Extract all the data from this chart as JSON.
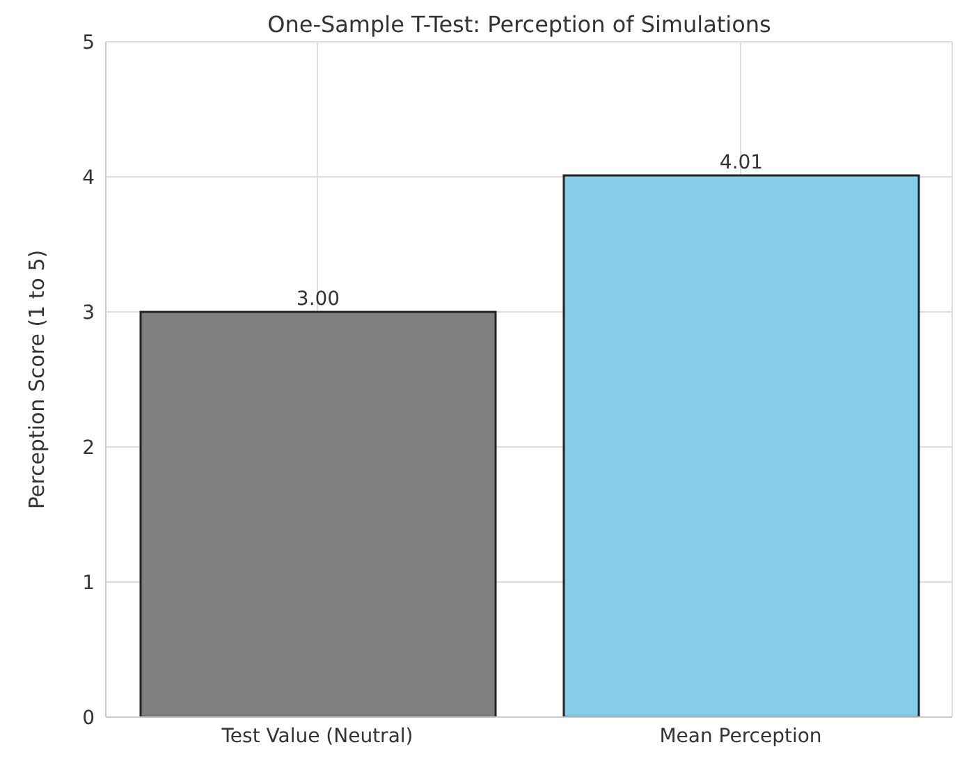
{
  "chart_data": {
    "type": "bar",
    "title": "One-Sample T-Test: Perception of Simulations",
    "ylabel": "Perception Score (1 to 5)",
    "categories": [
      "Test Value (Neutral)",
      "Mean Perception"
    ],
    "values": [
      3,
      4.01
    ],
    "colors": [
      "#808080",
      "#87ceeb"
    ],
    "value_labels": [
      "3.00",
      "4.01"
    ],
    "ylim": [
      0,
      5
    ],
    "yticks": [
      0,
      1,
      2,
      3,
      4,
      5
    ],
    "grid": true
  }
}
